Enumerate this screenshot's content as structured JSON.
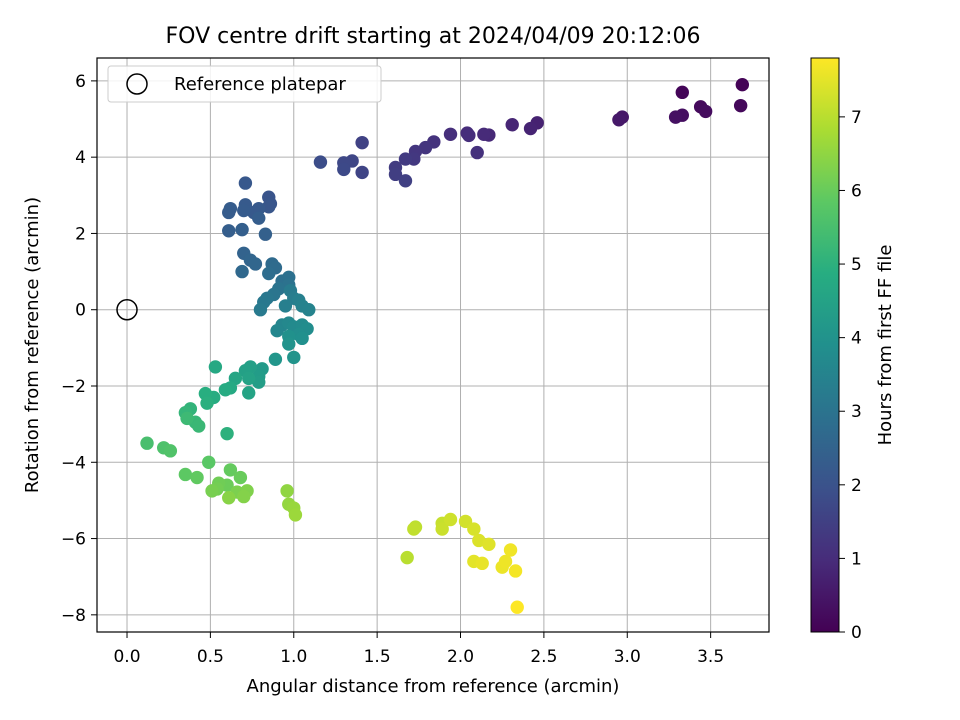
{
  "chart_data": {
    "type": "scatter",
    "title": "FOV centre drift starting at 2024/04/09 20:12:06",
    "xlabel": "Angular distance from reference (arcmin)",
    "ylabel": "Rotation from reference (arcmin)",
    "xlim": [
      -0.18,
      3.85
    ],
    "ylim": [
      -8.45,
      6.6
    ],
    "x_ticks": [
      0.0,
      0.5,
      1.0,
      1.5,
      2.0,
      2.5,
      3.0,
      3.5
    ],
    "x_tick_labels": [
      "0.0",
      "0.5",
      "1.0",
      "1.5",
      "2.0",
      "2.5",
      "3.0",
      "3.5"
    ],
    "y_ticks": [
      -8,
      -6,
      -4,
      -2,
      0,
      2,
      4,
      6
    ],
    "y_tick_labels": [
      "−8",
      "−6",
      "−4",
      "−2",
      "0",
      "2",
      "4",
      "6"
    ],
    "grid": true,
    "legend": {
      "position": "top-left",
      "entries": [
        "Reference platepar"
      ]
    },
    "reference_point": {
      "x": 0.0,
      "y": 0.0,
      "label": "Reference platepar"
    },
    "colorbar": {
      "label": "Hours from first FF file",
      "colormap": "viridis",
      "range": [
        0,
        7.8
      ],
      "ticks": [
        0,
        1,
        2,
        3,
        4,
        5,
        6,
        7
      ],
      "tick_labels": [
        "0",
        "1",
        "2",
        "3",
        "4",
        "5",
        "6",
        "7"
      ]
    },
    "points": [
      {
        "x": 3.69,
        "y": 5.9,
        "t": 0.05
      },
      {
        "x": 3.33,
        "y": 5.7,
        "t": 0.1
      },
      {
        "x": 3.68,
        "y": 5.35,
        "t": 0.15
      },
      {
        "x": 3.44,
        "y": 5.32,
        "t": 0.2
      },
      {
        "x": 3.47,
        "y": 5.2,
        "t": 0.25
      },
      {
        "x": 3.33,
        "y": 5.1,
        "t": 0.3
      },
      {
        "x": 3.29,
        "y": 5.05,
        "t": 0.35
      },
      {
        "x": 2.97,
        "y": 5.05,
        "t": 0.5
      },
      {
        "x": 2.95,
        "y": 4.98,
        "t": 0.55
      },
      {
        "x": 2.46,
        "y": 4.9,
        "t": 0.75
      },
      {
        "x": 2.42,
        "y": 4.75,
        "t": 0.8
      },
      {
        "x": 2.31,
        "y": 4.85,
        "t": 0.85
      },
      {
        "x": 2.17,
        "y": 4.58,
        "t": 0.9
      },
      {
        "x": 2.14,
        "y": 4.6,
        "t": 0.95
      },
      {
        "x": 2.04,
        "y": 4.63,
        "t": 1.0
      },
      {
        "x": 2.05,
        "y": 4.57,
        "t": 1.02
      },
      {
        "x": 1.94,
        "y": 4.6,
        "t": 1.05
      },
      {
        "x": 2.1,
        "y": 4.12,
        "t": 1.1
      },
      {
        "x": 1.84,
        "y": 4.4,
        "t": 1.15
      },
      {
        "x": 1.79,
        "y": 4.25,
        "t": 1.2
      },
      {
        "x": 1.73,
        "y": 4.15,
        "t": 1.25
      },
      {
        "x": 1.72,
        "y": 3.95,
        "t": 1.3
      },
      {
        "x": 1.67,
        "y": 3.95,
        "t": 1.35
      },
      {
        "x": 1.61,
        "y": 3.73,
        "t": 1.4
      },
      {
        "x": 1.61,
        "y": 3.55,
        "t": 1.45
      },
      {
        "x": 1.67,
        "y": 3.38,
        "t": 1.5
      },
      {
        "x": 1.41,
        "y": 4.38,
        "t": 1.55
      },
      {
        "x": 1.41,
        "y": 3.6,
        "t": 1.6
      },
      {
        "x": 1.35,
        "y": 3.9,
        "t": 1.65
      },
      {
        "x": 1.3,
        "y": 3.85,
        "t": 1.7
      },
      {
        "x": 1.3,
        "y": 3.68,
        "t": 1.75
      },
      {
        "x": 1.16,
        "y": 3.87,
        "t": 1.85
      },
      {
        "x": 0.85,
        "y": 2.95,
        "t": 2.05
      },
      {
        "x": 0.86,
        "y": 2.78,
        "t": 2.08
      },
      {
        "x": 0.85,
        "y": 2.7,
        "t": 2.1
      },
      {
        "x": 0.71,
        "y": 3.32,
        "t": 2.15
      },
      {
        "x": 0.79,
        "y": 2.65,
        "t": 2.18
      },
      {
        "x": 0.76,
        "y": 2.55,
        "t": 2.2
      },
      {
        "x": 0.71,
        "y": 2.75,
        "t": 2.22
      },
      {
        "x": 0.7,
        "y": 2.6,
        "t": 2.25
      },
      {
        "x": 0.62,
        "y": 2.65,
        "t": 2.28
      },
      {
        "x": 0.61,
        "y": 2.55,
        "t": 2.3
      },
      {
        "x": 0.79,
        "y": 2.4,
        "t": 2.32
      },
      {
        "x": 0.61,
        "y": 2.07,
        "t": 2.35
      },
      {
        "x": 0.69,
        "y": 2.1,
        "t": 2.38
      },
      {
        "x": 0.83,
        "y": 1.98,
        "t": 2.4
      },
      {
        "x": 0.7,
        "y": 1.48,
        "t": 2.5
      },
      {
        "x": 0.74,
        "y": 1.3,
        "t": 2.55
      },
      {
        "x": 0.77,
        "y": 1.2,
        "t": 2.6
      },
      {
        "x": 0.69,
        "y": 1.0,
        "t": 2.65
      },
      {
        "x": 0.87,
        "y": 1.2,
        "t": 2.7
      },
      {
        "x": 0.89,
        "y": 1.1,
        "t": 2.75
      },
      {
        "x": 0.85,
        "y": 0.95,
        "t": 2.8
      },
      {
        "x": 0.93,
        "y": 0.75,
        "t": 2.85
      },
      {
        "x": 0.97,
        "y": 0.85,
        "t": 2.9
      },
      {
        "x": 0.97,
        "y": 0.65,
        "t": 2.95
      },
      {
        "x": 0.91,
        "y": 0.55,
        "t": 3.0
      },
      {
        "x": 0.88,
        "y": 0.4,
        "t": 3.05
      },
      {
        "x": 0.84,
        "y": 0.3,
        "t": 3.1
      },
      {
        "x": 0.82,
        "y": 0.2,
        "t": 3.15
      },
      {
        "x": 0.8,
        "y": 0.0,
        "t": 3.2
      },
      {
        "x": 0.98,
        "y": 0.5,
        "t": 3.25
      },
      {
        "x": 1.0,
        "y": 0.3,
        "t": 3.3
      },
      {
        "x": 0.95,
        "y": 0.1,
        "t": 3.35
      },
      {
        "x": 1.03,
        "y": 0.25,
        "t": 3.4
      },
      {
        "x": 1.05,
        "y": 0.1,
        "t": 3.45
      },
      {
        "x": 1.09,
        "y": 0.0,
        "t": 3.5
      },
      {
        "x": 0.93,
        "y": -0.4,
        "t": 3.55
      },
      {
        "x": 0.9,
        "y": -0.55,
        "t": 3.6
      },
      {
        "x": 0.97,
        "y": -0.35,
        "t": 3.65
      },
      {
        "x": 1.0,
        "y": -0.45,
        "t": 3.7
      },
      {
        "x": 1.05,
        "y": -0.4,
        "t": 3.75
      },
      {
        "x": 1.08,
        "y": -0.5,
        "t": 3.8
      },
      {
        "x": 1.03,
        "y": -0.65,
        "t": 3.85
      },
      {
        "x": 1.05,
        "y": -0.75,
        "t": 3.9
      },
      {
        "x": 0.97,
        "y": -0.7,
        "t": 3.95
      },
      {
        "x": 0.97,
        "y": -0.9,
        "t": 4.0
      },
      {
        "x": 1.0,
        "y": -1.25,
        "t": 4.05
      },
      {
        "x": 0.89,
        "y": -1.3,
        "t": 4.1
      },
      {
        "x": 0.81,
        "y": -1.55,
        "t": 4.25
      },
      {
        "x": 0.79,
        "y": -1.75,
        "t": 4.3
      },
      {
        "x": 0.79,
        "y": -1.9,
        "t": 4.35
      },
      {
        "x": 0.74,
        "y": -1.5,
        "t": 4.4
      },
      {
        "x": 0.71,
        "y": -1.6,
        "t": 4.45
      },
      {
        "x": 0.73,
        "y": -1.8,
        "t": 4.5
      },
      {
        "x": 0.73,
        "y": -2.18,
        "t": 4.55
      },
      {
        "x": 0.65,
        "y": -1.8,
        "t": 4.6
      },
      {
        "x": 0.53,
        "y": -1.5,
        "t": 4.7
      },
      {
        "x": 0.62,
        "y": -2.05,
        "t": 4.75
      },
      {
        "x": 0.59,
        "y": -2.1,
        "t": 4.8
      },
      {
        "x": 0.52,
        "y": -2.3,
        "t": 4.85
      },
      {
        "x": 0.47,
        "y": -2.2,
        "t": 4.9
      },
      {
        "x": 0.48,
        "y": -2.45,
        "t": 4.95
      },
      {
        "x": 0.6,
        "y": -3.25,
        "t": 5.0
      },
      {
        "x": 0.38,
        "y": -2.6,
        "t": 5.1
      },
      {
        "x": 0.35,
        "y": -2.7,
        "t": 5.15
      },
      {
        "x": 0.41,
        "y": -2.95,
        "t": 5.2
      },
      {
        "x": 0.43,
        "y": -3.05,
        "t": 5.25
      },
      {
        "x": 0.36,
        "y": -2.85,
        "t": 5.3
      },
      {
        "x": 0.12,
        "y": -3.5,
        "t": 5.5
      },
      {
        "x": 0.22,
        "y": -3.62,
        "t": 5.6
      },
      {
        "x": 0.26,
        "y": -3.7,
        "t": 5.65
      },
      {
        "x": 0.49,
        "y": -4.0,
        "t": 5.8
      },
      {
        "x": 0.35,
        "y": -4.32,
        "t": 5.85
      },
      {
        "x": 0.42,
        "y": -4.4,
        "t": 5.9
      },
      {
        "x": 0.62,
        "y": -4.2,
        "t": 5.95
      },
      {
        "x": 0.68,
        "y": -4.4,
        "t": 6.0
      },
      {
        "x": 0.6,
        "y": -4.6,
        "t": 6.05
      },
      {
        "x": 0.55,
        "y": -4.55,
        "t": 6.1
      },
      {
        "x": 0.54,
        "y": -4.7,
        "t": 6.15
      },
      {
        "x": 0.51,
        "y": -4.75,
        "t": 6.2
      },
      {
        "x": 0.66,
        "y": -4.78,
        "t": 6.25
      },
      {
        "x": 0.72,
        "y": -4.75,
        "t": 6.3
      },
      {
        "x": 0.7,
        "y": -4.9,
        "t": 6.35
      },
      {
        "x": 0.61,
        "y": -4.93,
        "t": 6.4
      },
      {
        "x": 0.96,
        "y": -4.75,
        "t": 6.5
      },
      {
        "x": 0.97,
        "y": -5.1,
        "t": 6.55
      },
      {
        "x": 1.0,
        "y": -5.2,
        "t": 6.6
      },
      {
        "x": 1.01,
        "y": -5.38,
        "t": 6.65
      },
      {
        "x": 1.68,
        "y": -6.5,
        "t": 7.0
      },
      {
        "x": 1.73,
        "y": -5.7,
        "t": 7.05
      },
      {
        "x": 1.72,
        "y": -5.75,
        "t": 7.1
      },
      {
        "x": 1.89,
        "y": -5.6,
        "t": 7.15
      },
      {
        "x": 1.89,
        "y": -5.75,
        "t": 7.2
      },
      {
        "x": 1.94,
        "y": -5.5,
        "t": 7.25
      },
      {
        "x": 2.03,
        "y": -5.55,
        "t": 7.3
      },
      {
        "x": 2.08,
        "y": -5.75,
        "t": 7.35
      },
      {
        "x": 2.11,
        "y": -6.05,
        "t": 7.4
      },
      {
        "x": 2.17,
        "y": -6.15,
        "t": 7.45
      },
      {
        "x": 2.08,
        "y": -6.6,
        "t": 7.5
      },
      {
        "x": 2.13,
        "y": -6.65,
        "t": 7.55
      },
      {
        "x": 2.25,
        "y": -6.75,
        "t": 7.6
      },
      {
        "x": 2.27,
        "y": -6.6,
        "t": 7.62
      },
      {
        "x": 2.3,
        "y": -6.3,
        "t": 7.65
      },
      {
        "x": 2.33,
        "y": -6.85,
        "t": 7.7
      },
      {
        "x": 2.34,
        "y": -7.8,
        "t": 7.8
      }
    ]
  }
}
